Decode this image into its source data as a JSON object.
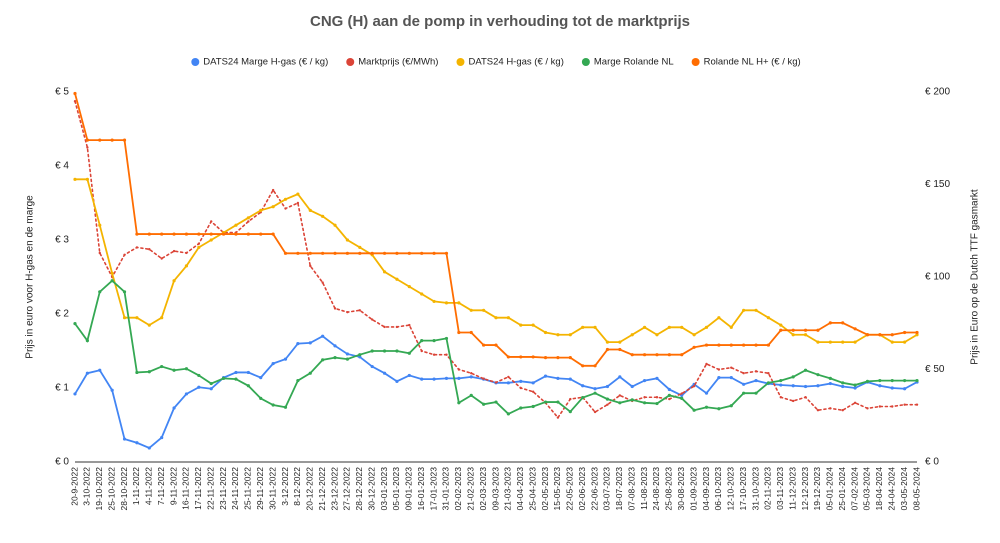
{
  "chart_data": {
    "type": "line",
    "title": "CNG (H) aan de pomp in verhouding tot de marktprijs",
    "y_label": "Prijs in euro voor H-gas en de marge",
    "y2_label": "Prijs in Euro op de Dutch TTF gasmarkt",
    "categories": [
      "20-9-2022",
      "3-10-2022",
      "19-10-2022",
      "25-10-2022",
      "28-10-2022",
      "1-11-2022",
      "4-11-2022",
      "7-11-2022",
      "9-11-2022",
      "16-11-2022",
      "17-11-2022",
      "22-11-2022",
      "23-11-2022",
      "24-11-2022",
      "25-11-2022",
      "29-11-2022",
      "30-11-2022",
      "3-12-2022",
      "8-12-2022",
      "20-12-2022",
      "21-12-2022",
      "23-12-2022",
      "27-12-2022",
      "28-12-2022",
      "30-12-2022",
      "03-01-2023",
      "05-01-2023",
      "09-01-2023",
      "16-01-2023",
      "17-01-2023",
      "31-01-2023",
      "02-02-2023",
      "21-02-2023",
      "02-03-2023",
      "09-03-2023",
      "21-03-2023",
      "04-04-2023",
      "25-04-2023",
      "02-05-2023",
      "15-05-2023",
      "22-05-2023",
      "02-06-2023",
      "22-06-2023",
      "03-07-2023",
      "18-07-2023",
      "07-08-2023",
      "11-08-2023",
      "24-08-2023",
      "25-08-2023",
      "30-08-2023",
      "01-09-2023",
      "04-09-2023",
      "06-10-2023",
      "12-10-2023",
      "17-10-2023",
      "31-10-2023",
      "02-11-2023",
      "03-11-2023",
      "11-12-2023",
      "12-12-2023",
      "19-12-2023",
      "05-01-2024",
      "25-01-2024",
      "07-02-2024",
      "05-03-2024",
      "18-04-2024",
      "24-04-2024",
      "03-05-2024",
      "08-05-2024"
    ],
    "series": [
      {
        "name": "DATS24 Marge H-gas (€ / kg)",
        "color": "#4285f4",
        "values": [
          0.92,
          1.2,
          1.24,
          0.97,
          0.31,
          0.26,
          0.19,
          0.33,
          0.73,
          0.92,
          1.01,
          0.99,
          1.14,
          1.21,
          1.21,
          1.14,
          1.33,
          1.39,
          1.6,
          1.61,
          1.7,
          1.57,
          1.46,
          1.42,
          1.29,
          1.2,
          1.09,
          1.17,
          1.12,
          1.12,
          1.13,
          1.13,
          1.15,
          1.12,
          1.07,
          1.07,
          1.09,
          1.07,
          1.16,
          1.13,
          1.12,
          1.03,
          0.99,
          1.02,
          1.15,
          1.02,
          1.1,
          1.13,
          0.98,
          0.9,
          1.05,
          0.93,
          1.14,
          1.14,
          1.05,
          1.1,
          1.06,
          1.04,
          1.03,
          1.02,
          1.03,
          1.06,
          1.02,
          1.0,
          1.08,
          1.03,
          1.0,
          0.99,
          1.08
        ]
      },
      {
        "name": "Marktprijs (€/MWh)",
        "color": "#db4437",
        "axis": "y2",
        "style": "dotted",
        "values": [
          195,
          170,
          113,
          100,
          112,
          116,
          115,
          110,
          114,
          113,
          118,
          130,
          124,
          124,
          130,
          135,
          147,
          137,
          140,
          106,
          97,
          83,
          81,
          82,
          77,
          73,
          73,
          74,
          60,
          58,
          58,
          50,
          48,
          45,
          43,
          46,
          40,
          38,
          32,
          24,
          34,
          35,
          27,
          31,
          36,
          33,
          35,
          35,
          34,
          37,
          41,
          53,
          50,
          51,
          48,
          49,
          48,
          35,
          33,
          35,
          28,
          29,
          28,
          32,
          29,
          30,
          30,
          31,
          31
        ]
      },
      {
        "name": "DATS24 H-gas (€ / kg)",
        "color": "#f4b400",
        "values": [
          3.82,
          3.82,
          3.2,
          2.55,
          1.95,
          1.95,
          1.85,
          1.95,
          2.45,
          2.65,
          2.9,
          3.0,
          3.1,
          3.2,
          3.3,
          3.4,
          3.45,
          3.55,
          3.62,
          3.4,
          3.32,
          3.2,
          3.0,
          2.9,
          2.8,
          2.57,
          2.47,
          2.37,
          2.27,
          2.17,
          2.15,
          2.15,
          2.05,
          2.05,
          1.95,
          1.95,
          1.85,
          1.85,
          1.75,
          1.72,
          1.72,
          1.82,
          1.82,
          1.62,
          1.62,
          1.72,
          1.82,
          1.72,
          1.82,
          1.82,
          1.72,
          1.82,
          1.95,
          1.82,
          2.05,
          2.05,
          1.95,
          1.85,
          1.72,
          1.72,
          1.62,
          1.62,
          1.62,
          1.62,
          1.72,
          1.72,
          1.62,
          1.62,
          1.72
        ]
      },
      {
        "name": "Marge Rolande NL",
        "color": "#34a853",
        "values": [
          1.87,
          1.64,
          2.3,
          2.45,
          2.3,
          1.21,
          1.22,
          1.29,
          1.24,
          1.26,
          1.17,
          1.06,
          1.13,
          1.12,
          1.03,
          0.86,
          0.77,
          0.74,
          1.1,
          1.2,
          1.38,
          1.41,
          1.39,
          1.45,
          1.5,
          1.5,
          1.5,
          1.47,
          1.64,
          1.64,
          1.67,
          0.8,
          0.9,
          0.78,
          0.81,
          0.65,
          0.73,
          0.75,
          0.81,
          0.81,
          0.68,
          0.87,
          0.93,
          0.85,
          0.8,
          0.84,
          0.8,
          0.79,
          0.9,
          0.86,
          0.7,
          0.74,
          0.72,
          0.76,
          0.93,
          0.93,
          1.07,
          1.1,
          1.15,
          1.24,
          1.18,
          1.13,
          1.07,
          1.04,
          1.09,
          1.1,
          1.1,
          1.1,
          1.1
        ]
      },
      {
        "name": "Rolande NL H+ (€ / kg)",
        "color": "#ff6d01",
        "values": [
          4.98,
          4.35,
          4.35,
          4.35,
          4.35,
          3.08,
          3.08,
          3.08,
          3.08,
          3.08,
          3.08,
          3.08,
          3.08,
          3.08,
          3.08,
          3.08,
          3.08,
          2.82,
          2.82,
          2.82,
          2.82,
          2.82,
          2.82,
          2.82,
          2.82,
          2.82,
          2.82,
          2.82,
          2.82,
          2.82,
          2.82,
          1.75,
          1.75,
          1.58,
          1.58,
          1.42,
          1.42,
          1.42,
          1.41,
          1.41,
          1.41,
          1.3,
          1.3,
          1.52,
          1.52,
          1.45,
          1.45,
          1.45,
          1.45,
          1.45,
          1.55,
          1.58,
          1.58,
          1.58,
          1.58,
          1.58,
          1.58,
          1.78,
          1.78,
          1.78,
          1.78,
          1.88,
          1.88,
          1.8,
          1.72,
          1.72,
          1.72,
          1.75,
          1.75
        ]
      }
    ],
    "ylim": [
      0,
      5
    ],
    "yticks": [
      {
        "value": 0,
        "label": "€ 0"
      },
      {
        "value": 1,
        "label": "€ 1"
      },
      {
        "value": 2,
        "label": "€ 2"
      },
      {
        "value": 3,
        "label": "€ 3"
      },
      {
        "value": 4,
        "label": "€ 4"
      },
      {
        "value": 5,
        "label": "€ 5"
      }
    ],
    "y2lim": [
      0,
      200
    ],
    "y2ticks": [
      {
        "value": 0,
        "label": "€ 0"
      },
      {
        "value": 50,
        "label": "€ 50"
      },
      {
        "value": 100,
        "label": "€ 100"
      },
      {
        "value": 150,
        "label": "€ 150"
      },
      {
        "value": 200,
        "label": "€ 200"
      }
    ],
    "grid": false,
    "legend": "top"
  }
}
